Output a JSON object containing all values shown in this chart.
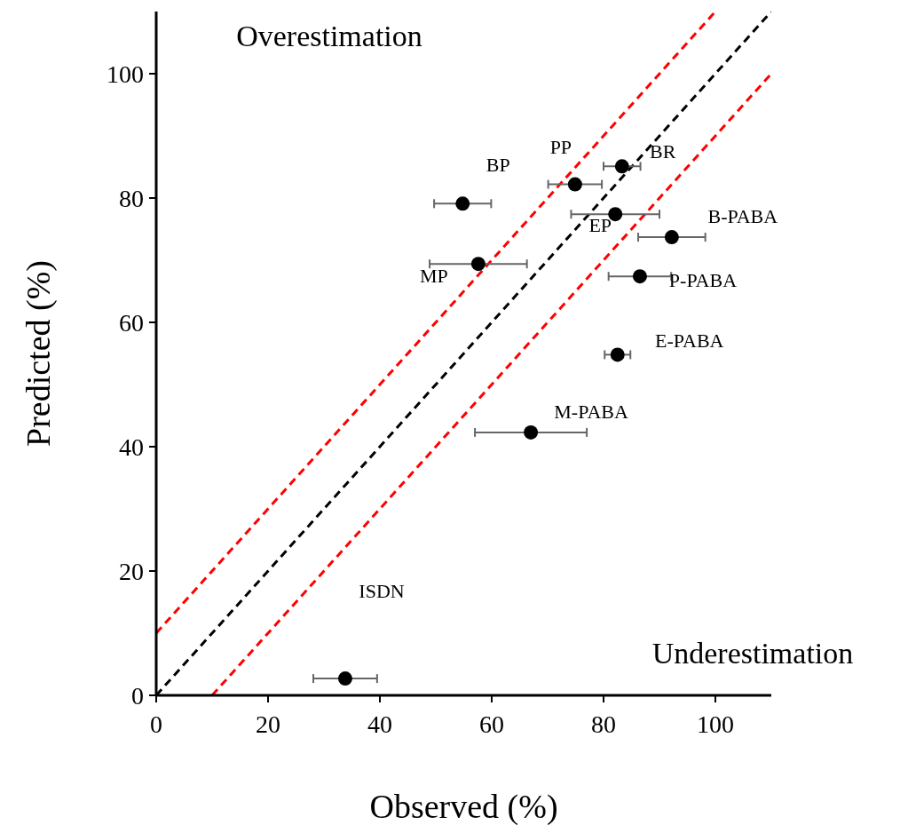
{
  "chart_data": {
    "type": "scatter",
    "xlabel": "Observed (%)",
    "ylabel": "Predicted (%)",
    "xlim": [
      0,
      110
    ],
    "ylim": [
      0,
      110
    ],
    "xticks": [
      0,
      20,
      40,
      60,
      80,
      100
    ],
    "yticks": [
      0,
      20,
      40,
      60,
      80,
      100
    ],
    "grid": false,
    "marker": "circle",
    "series": [
      {
        "type": "line",
        "color": "#000000",
        "line_style": "dashed",
        "marker": "none",
        "x": [
          0,
          110
        ],
        "values": [
          0,
          110
        ]
      },
      {
        "type": "line",
        "color": "#ff0000",
        "line_style": "dashed",
        "marker": "none",
        "x": [
          0,
          100
        ],
        "values": [
          10,
          110
        ]
      },
      {
        "type": "line",
        "color": "#ff0000",
        "line_style": "dashed",
        "marker": "none",
        "x": [
          10,
          110
        ],
        "values": [
          0,
          100
        ]
      },
      {
        "type": "scatter",
        "color": "#000000",
        "x": [
          33.8,
          67.0,
          82.5,
          86.5,
          92.2,
          82.1,
          83.3,
          74.9,
          54.8,
          57.6
        ],
        "values": [
          2.7,
          42.3,
          54.8,
          67.4,
          73.7,
          77.4,
          85.1,
          82.2,
          79.1,
          69.4
        ],
        "xerrors": [
          5.7,
          10,
          2.3,
          5.6,
          6,
          7.9,
          3.3,
          4.8,
          5.1,
          8.7
        ]
      }
    ],
    "annotations": [
      "ISDN",
      {
        "text": "M-PABA",
        "x": 67.0,
        "y": 42.3
      },
      {
        "text": "E-PABA",
        "x": 82.5,
        "y": 54.8
      },
      {
        "text": "P-PABA",
        "x": 86.5,
        "y": 67.4
      },
      {
        "text": "B-PABA",
        "x": 92.2,
        "y": 73.7
      },
      {
        "text": "EP",
        "x": 82.1,
        "y": 77.4
      },
      {
        "text": "BR",
        "x": 83.3,
        "y": 85.1
      },
      {
        "text": "PP",
        "x": 74.9,
        "y": 82.2
      },
      {
        "text": "BP",
        "x": 54.8,
        "y": 79.1
      },
      {
        "text": "MP",
        "x": 57.6,
        "y": 69.4
      },
      "Overestimation",
      "Underestimation"
    ]
  }
}
